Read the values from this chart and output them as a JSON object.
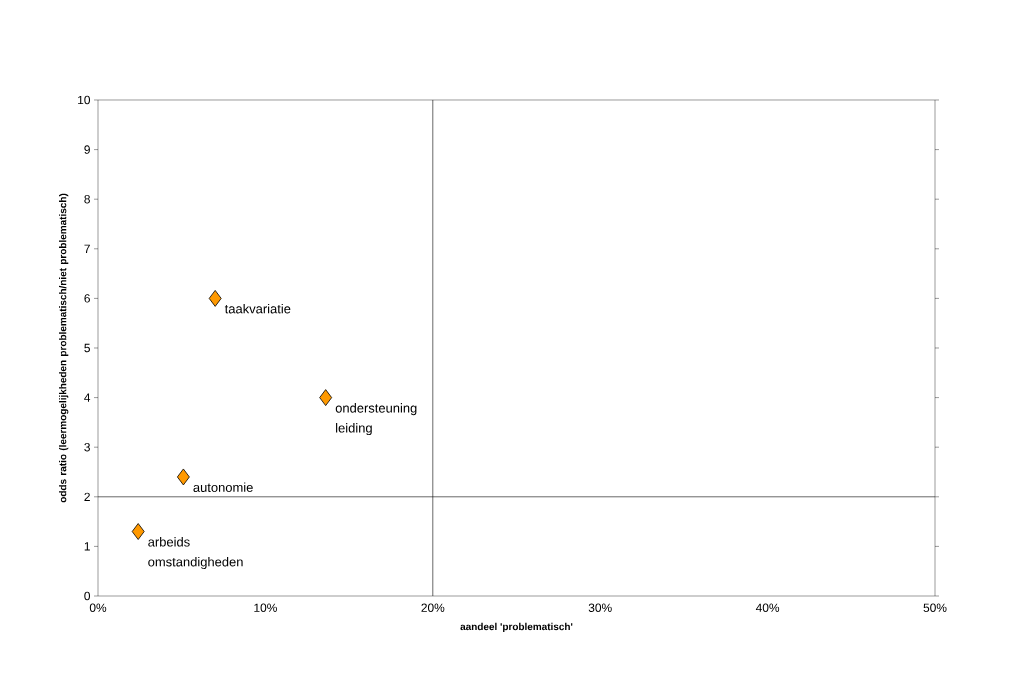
{
  "chart_data": {
    "type": "scatter",
    "xlabel": "aandeel 'problematisch'",
    "ylabel": "odds ratio (leermogelijkheden problematisch/niet problematisch)",
    "x": [
      2.4,
      5.1,
      7.0,
      13.6
    ],
    "series": [
      {
        "color": "#ff9900",
        "values": [
          1.3,
          2.4,
          6.0,
          4.0
        ]
      }
    ],
    "marker": "diamond",
    "grid": false,
    "xlim": [
      0,
      50
    ],
    "ylim": [
      0,
      10
    ],
    "xticks": [
      {
        "value": 0,
        "label": "0%"
      },
      {
        "value": 10,
        "label": "10%"
      },
      {
        "value": 20,
        "label": "20%"
      },
      {
        "value": 30,
        "label": "30%"
      },
      {
        "value": 40,
        "label": "40%"
      },
      {
        "value": 50,
        "label": "50%"
      }
    ],
    "yticks": [
      0,
      1,
      2,
      3,
      4,
      5,
      6,
      7,
      8,
      9,
      10
    ],
    "ref_lines": [
      {
        "axis": "x",
        "value": 20
      },
      {
        "axis": "y",
        "value": 2
      }
    ],
    "annotations": [
      {
        "text": "arbeids omstandigheden",
        "x": 2.4,
        "y": 1.3
      },
      {
        "text": "autonomie",
        "x": 5.1,
        "y": 2.4
      },
      {
        "text": "taakvariatie",
        "x": 7.0,
        "y": 6.0
      },
      {
        "text": "ondersteuning leiding",
        "x": 13.6,
        "y": 4.0
      }
    ]
  }
}
